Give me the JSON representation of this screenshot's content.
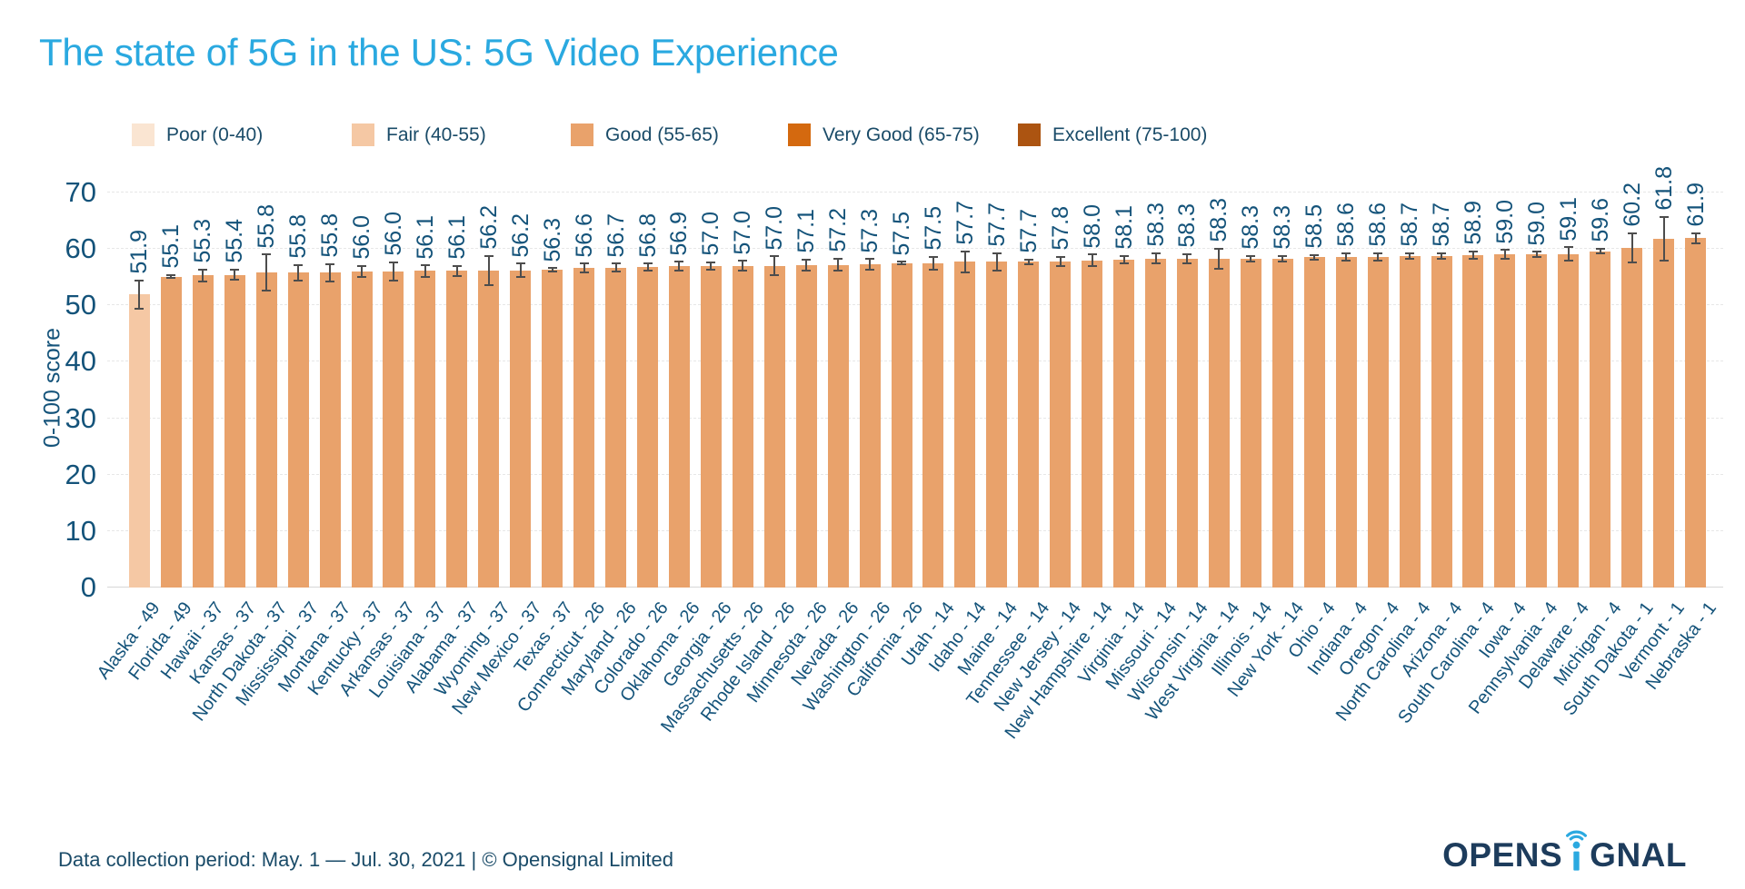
{
  "title": "The state of 5G in the US: 5G Video Experience",
  "legend": {
    "items": [
      {
        "label": "Poor (0-40)",
        "color": "#FAE5D2"
      },
      {
        "label": "Fair (40-55)",
        "color": "#F5C8A4"
      },
      {
        "label": "Good (55-65)",
        "color": "#E9A26B"
      },
      {
        "label": "Very Good (65-75)",
        "color": "#D4690F"
      },
      {
        "label": "Excellent (75-100)",
        "color": "#AC5411"
      }
    ]
  },
  "chart_data": {
    "type": "bar",
    "title": "The state of 5G in the US: 5G Video Experience",
    "xlabel": "",
    "ylabel": "0-100 score",
    "ylim": [
      0,
      70
    ],
    "yticks": [
      0,
      10,
      20,
      30,
      40,
      50,
      60,
      70
    ],
    "grid": "horizontal-dashed",
    "legend_position": "top",
    "value_label_rotation": 90,
    "category_label_rotation": 53,
    "rating_thresholds": [
      40,
      55,
      65,
      75
    ],
    "categories": [
      "Alaska - 49",
      "Florida - 49",
      "Hawaii - 37",
      "Kansas - 37",
      "North Dakota - 37",
      "Mississippi - 37",
      "Montana - 37",
      "Kentucky - 37",
      "Arkansas - 37",
      "Louisiana - 37",
      "Alabama - 37",
      "Wyoming - 37",
      "New Mexico - 37",
      "Texas - 37",
      "Connecticut - 26",
      "Maryland - 26",
      "Colorado - 26",
      "Oklahoma - 26",
      "Georgia - 26",
      "Massachusetts - 26",
      "Rhode Island - 26",
      "Minnesota - 26",
      "Nevada - 26",
      "Washington - 26",
      "California - 26",
      "Utah - 14",
      "Idaho - 14",
      "Maine - 14",
      "Tennessee - 14",
      "New Jersey - 14",
      "New Hampshire - 14",
      "Virginia - 14",
      "Missouri - 14",
      "Wisconsin - 14",
      "West Virginia - 14",
      "Illinois - 14",
      "New York - 14",
      "Ohio - 4",
      "Indiana - 4",
      "Oregon - 4",
      "North Carolina - 4",
      "Arizona - 4",
      "South Carolina - 4",
      "Iowa - 4",
      "Pennsylvania - 4",
      "Delaware - 4",
      "Michigan - 4",
      "South Dakota - 1",
      "Vermont - 1",
      "Nebraska - 1"
    ],
    "values": [
      51.9,
      55.1,
      55.3,
      55.4,
      55.8,
      55.8,
      55.8,
      56.0,
      56.0,
      56.1,
      56.1,
      56.2,
      56.2,
      56.3,
      56.6,
      56.7,
      56.8,
      56.9,
      57.0,
      57.0,
      57.0,
      57.1,
      57.2,
      57.3,
      57.5,
      57.5,
      57.7,
      57.7,
      57.7,
      57.8,
      58.0,
      58.1,
      58.3,
      58.3,
      58.3,
      58.3,
      58.3,
      58.5,
      58.6,
      58.6,
      58.7,
      58.7,
      58.9,
      59.0,
      59.0,
      59.1,
      59.6,
      60.2,
      61.8,
      61.9
    ],
    "error_bars": [
      2.5,
      0.3,
      1.0,
      0.9,
      3.2,
      1.4,
      1.5,
      1.0,
      1.6,
      1.0,
      0.9,
      2.6,
      1.2,
      0.3,
      0.8,
      0.7,
      0.6,
      0.8,
      0.6,
      0.9,
      1.7,
      1.0,
      1.1,
      0.9,
      0.2,
      1.1,
      1.9,
      1.6,
      0.4,
      0.8,
      1.0,
      0.7,
      0.9,
      0.8,
      1.8,
      0.5,
      0.5,
      0.4,
      0.6,
      0.6,
      0.5,
      0.5,
      0.7,
      0.8,
      0.5,
      1.2,
      0.4,
      2.6,
      3.9,
      0.9
    ]
  },
  "footer": {
    "note": "Data collection period: May. 1 — Jul. 30, 2021 | © Opensignal Limited",
    "logo": {
      "left": "OPENS",
      "right": "GNAL",
      "navy": "#1D3C5C",
      "blue": "#2BA9E0"
    }
  },
  "colors": {
    "title": "#2AA9E0",
    "chart_text": "#14537A",
    "legend_text": "#1A4B68",
    "error_bar": "#4D4D4D",
    "gridline": "#E7E7E7"
  }
}
